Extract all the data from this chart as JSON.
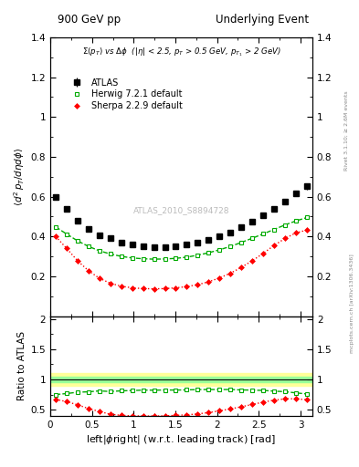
{
  "title_left": "900 GeV pp",
  "title_right": "Underlying Event",
  "annotation": "Σ(p_{T}) vs Δφ  (|η| < 2.5, p_{T} > 0.5 GeV, p_{T1} > 2 GeV)",
  "ylabel_main": "<d^{2} p_{T}/d#eta d#phi>",
  "ylabel_ratio": "Ratio to ATLAS",
  "xlabel": "left|#phiright| (w.r.t. leading track) [rad]",
  "watermark": "ATLAS_2010_S8894728",
  "right_label_top": "Rivet 3.1.10; ≥ 2.6M events",
  "right_label_bot": "mcplots.cern.ch [arXiv:1306.3436]",
  "ylim_main": [
    0.0,
    1.4
  ],
  "ylim_ratio": [
    0.4,
    2.05
  ],
  "xlim": [
    0.0,
    3.14159
  ],
  "atlas_x": [
    0.0654,
    0.1963,
    0.3272,
    0.4581,
    0.589,
    0.7199,
    0.8508,
    0.9817,
    1.1126,
    1.2435,
    1.3744,
    1.5053,
    1.6362,
    1.7671,
    1.898,
    2.0289,
    2.1598,
    2.2907,
    2.4216,
    2.5525,
    2.6834,
    2.8143,
    2.9452,
    3.0761
  ],
  "atlas_y": [
    0.598,
    0.538,
    0.48,
    0.44,
    0.405,
    0.39,
    0.37,
    0.358,
    0.35,
    0.348,
    0.348,
    0.352,
    0.358,
    0.368,
    0.382,
    0.4,
    0.42,
    0.448,
    0.475,
    0.505,
    0.54,
    0.575,
    0.615,
    0.652
  ],
  "atlas_yerr": [
    0.012,
    0.01,
    0.009,
    0.008,
    0.007,
    0.007,
    0.006,
    0.006,
    0.006,
    0.006,
    0.006,
    0.006,
    0.006,
    0.006,
    0.007,
    0.007,
    0.008,
    0.009,
    0.01,
    0.011,
    0.012,
    0.013,
    0.014,
    0.015
  ],
  "herwig_x": [
    0.0654,
    0.1963,
    0.3272,
    0.4581,
    0.589,
    0.7199,
    0.8508,
    0.9817,
    1.1126,
    1.2435,
    1.3744,
    1.5053,
    1.6362,
    1.7671,
    1.898,
    2.0289,
    2.1598,
    2.2907,
    2.4216,
    2.5525,
    2.6834,
    2.8143,
    2.9452,
    3.0761
  ],
  "herwig_y": [
    0.448,
    0.412,
    0.378,
    0.35,
    0.328,
    0.312,
    0.3,
    0.292,
    0.288,
    0.286,
    0.287,
    0.29,
    0.296,
    0.306,
    0.318,
    0.333,
    0.35,
    0.37,
    0.391,
    0.413,
    0.435,
    0.458,
    0.478,
    0.495
  ],
  "sherpa_x": [
    0.0654,
    0.1963,
    0.3272,
    0.4581,
    0.589,
    0.7199,
    0.8508,
    0.9817,
    1.1126,
    1.2435,
    1.3744,
    1.5053,
    1.6362,
    1.7671,
    1.898,
    2.0289,
    2.1598,
    2.2907,
    2.4216,
    2.5525,
    2.6834,
    2.8143,
    2.9452,
    3.0761
  ],
  "sherpa_y": [
    0.4,
    0.34,
    0.278,
    0.228,
    0.19,
    0.165,
    0.15,
    0.142,
    0.138,
    0.137,
    0.138,
    0.142,
    0.148,
    0.158,
    0.172,
    0.192,
    0.215,
    0.245,
    0.278,
    0.315,
    0.355,
    0.39,
    0.418,
    0.432
  ],
  "herwig_ratio": [
    0.749,
    0.766,
    0.788,
    0.795,
    0.81,
    0.8,
    0.811,
    0.816,
    0.823,
    0.822,
    0.825,
    0.824,
    0.827,
    0.832,
    0.833,
    0.833,
    0.833,
    0.826,
    0.823,
    0.818,
    0.806,
    0.797,
    0.777,
    0.759
  ],
  "sherpa_ratio": [
    0.669,
    0.632,
    0.579,
    0.518,
    0.469,
    0.423,
    0.405,
    0.397,
    0.394,
    0.394,
    0.397,
    0.404,
    0.413,
    0.429,
    0.45,
    0.48,
    0.512,
    0.547,
    0.585,
    0.624,
    0.657,
    0.678,
    0.68,
    0.662
  ],
  "atlas_color": "black",
  "herwig_color": "#00aa00",
  "sherpa_color": "red",
  "band_yellow": "#ffff99",
  "band_green": "#99ff99",
  "legend_entries": [
    "ATLAS",
    "Herwig 7.2.1 default",
    "Sherpa 2.2.9 default"
  ]
}
